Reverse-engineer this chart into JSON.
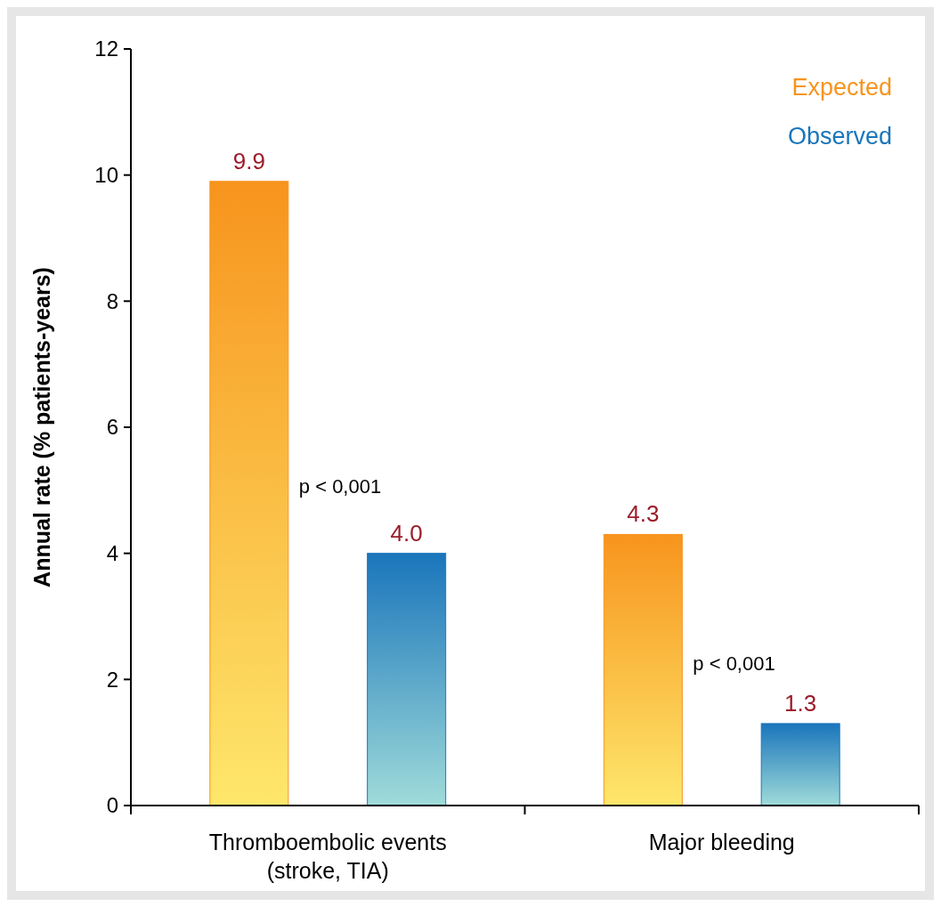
{
  "chart_data": {
    "type": "bar",
    "ylabel": "Annual rate (% patients-years)",
    "categories": [
      "Thromboembolic events\n(stroke, TIA)",
      "Major bleeding"
    ],
    "series": [
      {
        "name": "Expected",
        "color": "#f7941d",
        "values": [
          9.9,
          4.3
        ],
        "value_labels": [
          "9.9",
          "4.3"
        ]
      },
      {
        "name": "Observed",
        "color": "#1a75bb",
        "values": [
          4.0,
          1.3
        ],
        "value_labels": [
          "4.0",
          "1.3"
        ]
      }
    ],
    "ylim": [
      0,
      12
    ],
    "yticks": [
      0,
      2,
      4,
      6,
      8,
      10,
      12
    ],
    "grid": false,
    "legend": "top right",
    "annotations": [
      "p < 0,001",
      "p < 0,001"
    ]
  }
}
